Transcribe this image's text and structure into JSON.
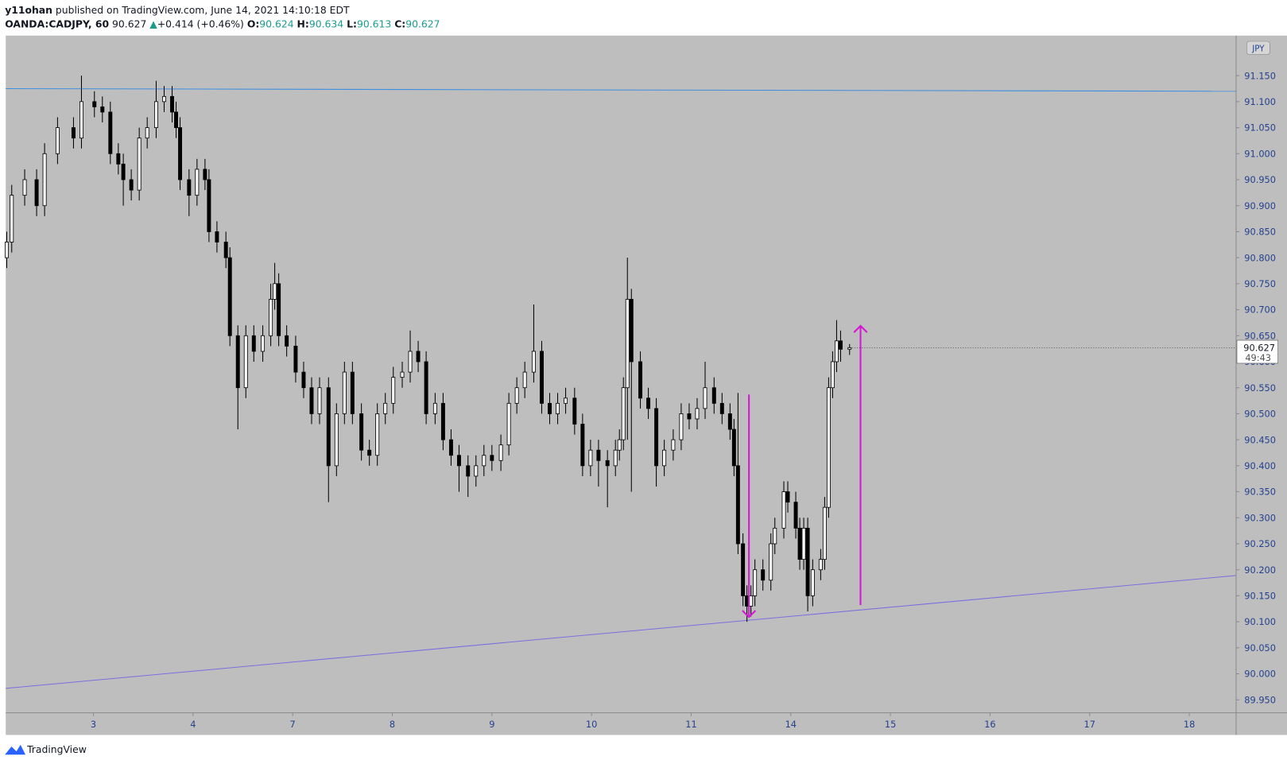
{
  "chart_data": {
    "type": "candlestick",
    "author": "y11ohan",
    "title": "published on TradingView.com, June 14, 2021 14:10:18 EDT",
    "subtitle": [
      "OANDA:CADJPY, 60",
      "90.627",
      "▲",
      "+0.414 (+0.46%)",
      "O:",
      "90.624",
      "H:",
      "90.634",
      "L:",
      "90.613",
      "C:",
      "90.627"
    ],
    "currency": "JPY",
    "last_price_label": "90.627",
    "countdown": "49:43",
    "footer": "TradingView",
    "up_color": "#ffffff",
    "down_color": "#000000",
    "wick_color": "#000000",
    "grid": false,
    "xlim": [
      -0.88,
      11.47
    ],
    "xticks": [
      {
        "value": 0,
        "label": "3"
      },
      {
        "value": 1,
        "label": "4"
      },
      {
        "value": 2,
        "label": "7"
      },
      {
        "value": 3,
        "label": "8"
      },
      {
        "value": 4,
        "label": "9"
      },
      {
        "value": 5,
        "label": "10"
      },
      {
        "value": 6,
        "label": "11"
      },
      {
        "value": 7,
        "label": "14"
      },
      {
        "value": 8,
        "label": "15"
      },
      {
        "value": 9,
        "label": "16"
      },
      {
        "value": 10,
        "label": "17"
      },
      {
        "value": 11,
        "label": "18"
      }
    ],
    "ylim": [
      89.925,
      91.227
    ],
    "yticks": [
      {
        "value": 89.95,
        "label": "89.950"
      },
      {
        "value": 90.0,
        "label": "90.000"
      },
      {
        "value": 90.05,
        "label": "90.050"
      },
      {
        "value": 90.1,
        "label": "90.100"
      },
      {
        "value": 90.15,
        "label": "90.150"
      },
      {
        "value": 90.2,
        "label": "90.200"
      },
      {
        "value": 90.25,
        "label": "90.250"
      },
      {
        "value": 90.3,
        "label": "90.300"
      },
      {
        "value": 90.35,
        "label": "90.350"
      },
      {
        "value": 90.4,
        "label": "90.400"
      },
      {
        "value": 90.45,
        "label": "90.450"
      },
      {
        "value": 90.5,
        "label": "90.500"
      },
      {
        "value": 90.55,
        "label": "90.550"
      },
      {
        "value": 90.6,
        "label": "90.600"
      },
      {
        "value": 90.65,
        "label": "90.650"
      },
      {
        "value": 90.7,
        "label": "90.700"
      },
      {
        "value": 90.75,
        "label": "90.750"
      },
      {
        "value": 90.8,
        "label": "90.800"
      },
      {
        "value": 90.85,
        "label": "90.850"
      },
      {
        "value": 90.9,
        "label": "90.900"
      },
      {
        "value": 90.95,
        "label": "90.950"
      },
      {
        "value": 91.0,
        "label": "91.000"
      },
      {
        "value": 91.05,
        "label": "91.050"
      },
      {
        "value": 91.1,
        "label": "91.100"
      },
      {
        "value": 91.15,
        "label": "91.150"
      }
    ],
    "x": [
      -0.87,
      -0.82,
      -0.69,
      -0.57,
      -0.49,
      -0.36,
      -0.2,
      -0.12,
      0.01,
      0.09,
      0.17,
      0.25,
      0.3,
      0.38,
      0.46,
      0.54,
      0.63,
      0.71,
      0.79,
      0.83,
      0.87,
      0.96,
      1.04,
      1.12,
      1.16,
      1.24,
      1.33,
      1.37,
      1.45,
      1.53,
      1.61,
      1.7,
      1.78,
      1.82,
      1.86,
      1.94,
      2.03,
      2.11,
      2.19,
      2.27,
      2.36,
      2.44,
      2.52,
      2.6,
      2.69,
      2.77,
      2.85,
      2.93,
      3.01,
      3.1,
      3.18,
      3.26,
      3.34,
      3.43,
      3.51,
      3.59,
      3.67,
      3.76,
      3.84,
      3.92,
      4.0,
      4.09,
      4.17,
      4.25,
      4.33,
      4.42,
      4.5,
      4.58,
      4.66,
      4.74,
      4.83,
      4.91,
      4.99,
      5.07,
      5.16,
      5.24,
      5.28,
      5.32,
      5.36,
      5.4,
      5.49,
      5.57,
      5.65,
      5.73,
      5.82,
      5.9,
      5.98,
      6.06,
      6.14,
      6.23,
      6.31,
      6.39,
      6.43,
      6.47,
      6.52,
      6.56,
      6.6,
      6.64,
      6.72,
      6.8,
      6.84,
      6.93,
      6.97,
      7.05,
      7.09,
      7.13,
      7.17,
      7.22,
      7.3,
      7.34,
      7.38,
      7.42,
      7.46,
      7.5,
      7.59
    ],
    "open": [
      90.8,
      90.83,
      90.92,
      90.95,
      90.9,
      91.0,
      91.05,
      91.03,
      91.1,
      91.09,
      91.08,
      91.0,
      90.98,
      90.95,
      90.93,
      91.03,
      91.05,
      91.1,
      91.11,
      91.08,
      91.05,
      90.95,
      90.92,
      90.97,
      90.95,
      90.85,
      90.83,
      90.8,
      90.65,
      90.55,
      90.65,
      90.62,
      90.65,
      90.72,
      90.75,
      90.65,
      90.63,
      90.58,
      90.55,
      90.5,
      90.55,
      90.4,
      90.5,
      90.58,
      90.5,
      90.43,
      90.42,
      90.5,
      90.52,
      90.57,
      90.58,
      90.62,
      90.6,
      90.5,
      90.52,
      90.45,
      90.42,
      90.4,
      90.38,
      90.4,
      90.42,
      90.41,
      90.44,
      90.52,
      90.55,
      90.58,
      90.62,
      90.52,
      90.5,
      90.52,
      90.53,
      90.48,
      90.4,
      90.43,
      90.41,
      90.4,
      90.43,
      90.45,
      90.55,
      90.72,
      90.6,
      90.53,
      90.51,
      90.4,
      90.43,
      90.45,
      90.5,
      90.49,
      90.51,
      90.55,
      90.52,
      90.5,
      90.47,
      90.4,
      90.25,
      90.15,
      90.13,
      90.15,
      90.2,
      90.18,
      90.25,
      90.28,
      90.35,
      90.33,
      90.28,
      90.22,
      90.28,
      90.15,
      90.2,
      90.22,
      90.32,
      90.55,
      90.6,
      90.64,
      90.624
    ],
    "high": [
      90.85,
      90.94,
      90.97,
      90.97,
      91.02,
      91.07,
      91.07,
      91.15,
      91.12,
      91.11,
      91.1,
      91.02,
      91.0,
      90.97,
      91.05,
      91.07,
      91.14,
      91.13,
      91.13,
      91.1,
      91.07,
      90.97,
      90.99,
      90.99,
      90.97,
      90.87,
      90.85,
      90.82,
      90.67,
      90.67,
      90.67,
      90.67,
      90.75,
      90.79,
      90.77,
      90.67,
      90.65,
      90.6,
      90.57,
      90.57,
      90.57,
      90.52,
      90.6,
      90.6,
      90.52,
      90.45,
      90.52,
      90.54,
      90.59,
      90.6,
      90.66,
      90.64,
      90.62,
      90.54,
      90.54,
      90.47,
      90.44,
      90.42,
      90.42,
      90.44,
      90.44,
      90.46,
      90.54,
      90.57,
      90.6,
      90.71,
      90.64,
      90.54,
      90.54,
      90.55,
      90.55,
      90.5,
      90.45,
      90.45,
      90.43,
      90.45,
      90.47,
      90.57,
      90.8,
      90.74,
      90.62,
      90.55,
      90.53,
      90.45,
      90.47,
      90.52,
      90.52,
      90.53,
      90.6,
      90.57,
      90.54,
      90.52,
      90.49,
      90.54,
      90.27,
      90.17,
      90.17,
      90.22,
      90.22,
      90.27,
      90.3,
      90.37,
      90.37,
      90.35,
      90.3,
      90.3,
      90.3,
      90.22,
      90.24,
      90.34,
      90.57,
      90.62,
      90.68,
      90.66,
      90.634
    ],
    "low": [
      90.78,
      90.81,
      90.9,
      90.88,
      90.88,
      90.98,
      91.01,
      91.01,
      91.07,
      91.06,
      90.98,
      90.96,
      90.9,
      90.91,
      90.91,
      91.01,
      91.03,
      91.08,
      91.06,
      91.03,
      90.93,
      90.88,
      90.9,
      90.93,
      90.83,
      90.81,
      90.78,
      90.63,
      90.47,
      90.53,
      90.6,
      90.6,
      90.63,
      90.7,
      90.63,
      90.61,
      90.56,
      90.53,
      90.48,
      90.48,
      90.33,
      90.38,
      90.48,
      90.48,
      90.41,
      90.4,
      90.4,
      90.48,
      90.5,
      90.55,
      90.56,
      90.58,
      90.48,
      90.48,
      90.43,
      90.4,
      90.35,
      90.34,
      90.36,
      90.38,
      90.39,
      90.39,
      90.42,
      90.5,
      90.53,
      90.56,
      90.5,
      90.48,
      90.48,
      90.5,
      90.46,
      90.38,
      90.38,
      90.36,
      90.32,
      90.38,
      90.41,
      90.43,
      90.45,
      90.35,
      90.51,
      90.49,
      90.36,
      90.38,
      90.41,
      90.43,
      90.47,
      90.47,
      90.49,
      90.5,
      90.48,
      90.45,
      90.38,
      90.23,
      90.13,
      90.1,
      90.11,
      90.13,
      90.16,
      90.16,
      90.23,
      90.26,
      90.31,
      90.26,
      90.2,
      90.2,
      90.12,
      90.13,
      90.18,
      90.2,
      90.3,
      90.53,
      90.58,
      90.6,
      90.613
    ],
    "close": [
      90.83,
      90.92,
      90.95,
      90.9,
      91.0,
      91.05,
      91.03,
      91.1,
      91.09,
      91.08,
      91.0,
      90.98,
      90.95,
      90.93,
      91.03,
      91.05,
      91.1,
      91.11,
      91.08,
      91.05,
      90.95,
      90.92,
      90.97,
      90.95,
      90.85,
      90.83,
      90.8,
      90.65,
      90.55,
      90.65,
      90.62,
      90.65,
      90.72,
      90.75,
      90.65,
      90.63,
      90.58,
      90.55,
      90.5,
      90.55,
      90.4,
      90.5,
      90.58,
      90.5,
      90.43,
      90.42,
      90.5,
      90.52,
      90.57,
      90.58,
      90.62,
      90.6,
      90.5,
      90.52,
      90.45,
      90.42,
      90.4,
      90.38,
      90.4,
      90.42,
      90.41,
      90.44,
      90.52,
      90.55,
      90.58,
      90.62,
      90.52,
      90.5,
      90.52,
      90.53,
      90.48,
      90.4,
      90.43,
      90.41,
      90.4,
      90.43,
      90.45,
      90.55,
      90.72,
      90.6,
      90.53,
      90.51,
      90.4,
      90.43,
      90.45,
      90.5,
      90.49,
      90.51,
      90.55,
      90.52,
      90.5,
      90.47,
      90.4,
      90.25,
      90.15,
      90.13,
      90.15,
      90.2,
      90.18,
      90.25,
      90.28,
      90.35,
      90.33,
      90.28,
      90.22,
      90.28,
      90.15,
      90.2,
      90.22,
      90.32,
      90.55,
      90.6,
      90.64,
      90.624,
      90.627
    ],
    "lines": [
      {
        "color": "#3d8fe0",
        "x": [
          -0.88,
          11.47
        ],
        "y": [
          91.125,
          91.12
        ]
      },
      {
        "color": "#7b6fe0",
        "x": [
          -0.88,
          11.47
        ],
        "y": [
          89.972,
          90.189
        ]
      }
    ],
    "arrows": [
      {
        "color": "#d417d4",
        "x": [
          6.58,
          6.58
        ],
        "y": [
          90.537,
          90.109
        ]
      },
      {
        "color": "#d417d4",
        "x": [
          7.7,
          7.7
        ],
        "y": [
          90.132,
          90.669
        ]
      }
    ]
  }
}
